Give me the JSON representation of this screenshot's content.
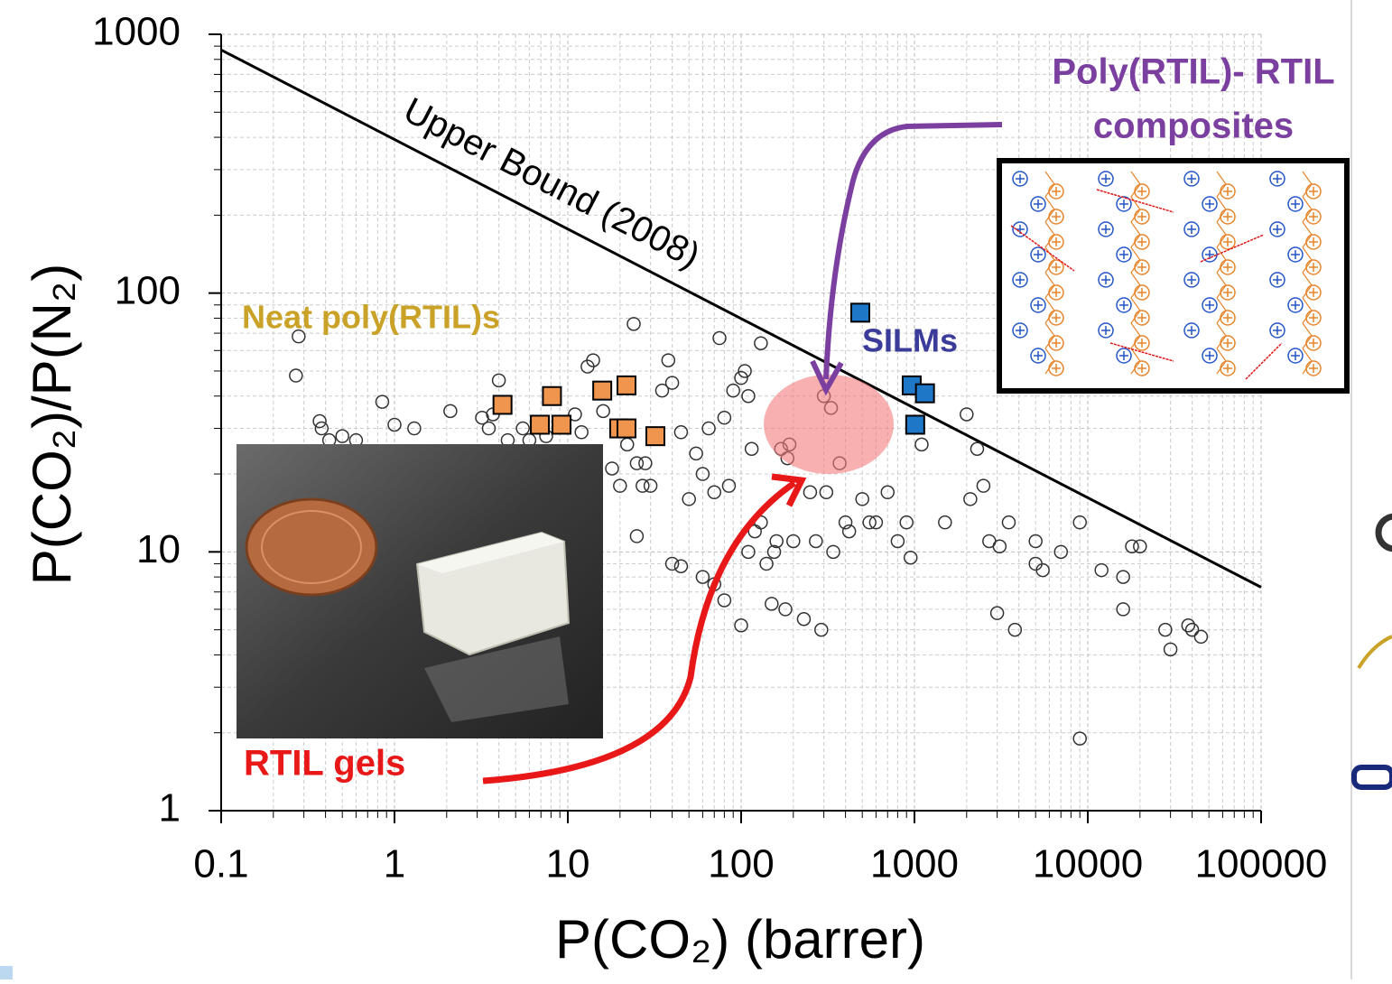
{
  "chart_data": {
    "type": "scatter",
    "xlabel": "P(CO₂) (barrer)",
    "ylabel": "P(CO₂)/P(N₂)",
    "xlog": true,
    "ylog": true,
    "grid": true,
    "xlim": [
      0.1,
      100000
    ],
    "ylim": [
      1,
      1000
    ],
    "xticks": [
      0.1,
      1,
      10,
      100,
      1000,
      10000,
      100000
    ],
    "yticks": [
      1,
      10,
      100,
      1000
    ],
    "annotations": [
      "Poly(RTIL)- RTIL",
      "composites",
      "RTIL gels"
    ],
    "series": [
      {
        "type": "line",
        "name": "Upper Bound (2008)",
        "color": "#000000",
        "x": [
          0.1,
          100000
        ],
        "values": [
          870,
          7.3
        ]
      },
      {
        "name": "Neat poly(RTIL)s",
        "marker": "square",
        "color": "#f0954e",
        "label_color": "#c9a227",
        "x": [
          4.2,
          6.9,
          8.1,
          9.2,
          15.8,
          21.8,
          19.8,
          21.8,
          32
        ],
        "values": [
          37,
          31,
          40,
          31,
          42,
          44,
          30,
          30,
          28
        ]
      },
      {
        "name": "SILMs",
        "marker": "square",
        "color": "#1f77c8",
        "label_color": "#3b3b9a",
        "x": [
          487,
          964,
          1150,
          1010
        ],
        "values": [
          84,
          44,
          41,
          31
        ]
      },
      {
        "marker": "circle",
        "color": "#333333",
        "x": [
          0.28,
          0.27,
          0.37,
          0.38,
          0.42,
          0.5,
          0.6,
          0.85,
          1.0,
          1.3,
          2.1,
          3.2,
          3.5,
          3.7,
          4,
          4.5,
          5.5,
          6,
          7.5,
          11,
          12,
          13,
          14,
          16,
          18,
          20,
          22,
          24,
          25,
          27,
          28,
          30,
          35,
          38,
          40,
          45,
          50,
          55,
          60,
          65,
          70,
          75,
          80,
          85,
          90,
          100,
          105,
          110,
          115,
          120,
          130,
          140,
          155,
          160,
          170,
          180,
          185,
          190,
          200,
          230,
          250,
          270,
          290,
          300,
          310,
          330,
          340,
          370,
          400,
          420,
          500,
          550,
          600,
          700,
          800,
          900,
          950,
          1100,
          1500,
          2000,
          2300,
          2100,
          2500,
          2700,
          3100,
          3500,
          3000,
          3800,
          5000,
          5000,
          5500,
          7000,
          9000,
          12000,
          16000,
          18000,
          16000,
          20000,
          28000,
          30000,
          38000,
          40000,
          45000,
          9000,
          60,
          70,
          80,
          40,
          45,
          25,
          100,
          110,
          130,
          150
        ],
        "values": [
          68,
          48,
          32,
          30,
          27,
          28,
          27,
          38,
          31,
          30,
          35,
          33,
          30,
          34,
          46,
          27,
          30,
          27,
          28,
          34,
          29,
          52,
          55,
          35,
          21,
          18,
          26,
          76,
          22,
          18,
          22,
          18,
          42,
          55,
          45,
          29,
          16,
          24,
          20,
          30,
          17,
          67,
          33,
          18,
          42,
          47,
          50,
          40,
          25,
          12,
          64,
          9,
          10,
          11,
          25,
          6,
          23,
          26,
          11,
          5.5,
          17,
          11,
          5,
          40,
          17,
          36,
          10,
          22,
          13,
          12,
          16,
          13,
          13,
          17,
          11,
          13,
          9.5,
          26,
          13,
          34,
          25,
          16,
          18,
          11,
          10.5,
          13,
          5.8,
          5,
          11,
          9,
          8.5,
          10,
          13,
          8.5,
          8,
          10.5,
          6,
          10.5,
          5,
          4.2,
          5.2,
          5,
          4.7,
          1.9,
          8,
          7.5,
          6.5,
          9,
          8.8,
          11.5,
          5.2,
          10,
          13,
          6.3
        ]
      }
    ]
  }
}
